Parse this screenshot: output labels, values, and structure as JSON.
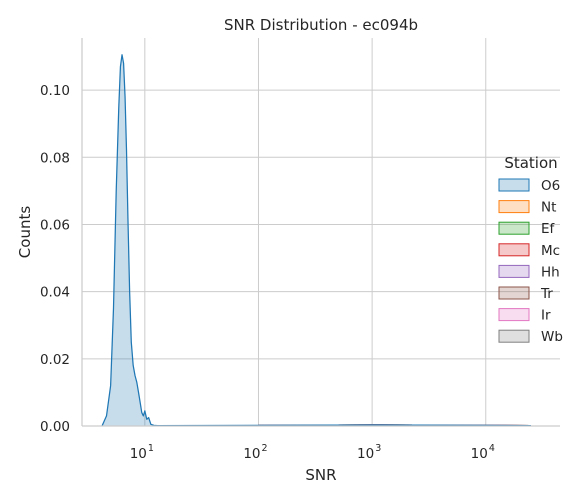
{
  "chart_data": {
    "type": "area",
    "title": "SNR Distribution - ec094b",
    "xlabel": "SNR",
    "ylabel": "Counts",
    "xscale": "log",
    "xlim": [
      2.8,
      45000
    ],
    "ylim": [
      0,
      0.1155
    ],
    "x_ticks": [
      {
        "base": "10",
        "exp": "1",
        "value": 10
      },
      {
        "base": "10",
        "exp": "2",
        "value": 100
      },
      {
        "base": "10",
        "exp": "3",
        "value": 1000
      },
      {
        "base": "10",
        "exp": "4",
        "value": 10000
      }
    ],
    "y_ticks": [
      "0.00",
      "0.02",
      "0.04",
      "0.06",
      "0.08",
      "0.10"
    ],
    "y_tick_values": [
      0,
      0.02,
      0.04,
      0.06,
      0.08,
      0.1
    ],
    "grid": true,
    "legend": {
      "title": "Station",
      "placement": "center-right",
      "entries": [
        {
          "name": "O6",
          "color": "#1f77b4"
        },
        {
          "name": "Nt",
          "color": "#ff7f0e"
        },
        {
          "name": "Ef",
          "color": "#2ca02c"
        },
        {
          "name": "Mc",
          "color": "#d62728"
        },
        {
          "name": "Hh",
          "color": "#9467bd"
        },
        {
          "name": "Tr",
          "color": "#8c564b"
        },
        {
          "name": "Ir",
          "color": "#e377c2"
        },
        {
          "name": "Wb",
          "color": "#7f7f7f"
        }
      ]
    },
    "series": [
      {
        "name": "O6",
        "color": "#1f77b4",
        "x": [
          4.2,
          4.6,
          5.0,
          5.3,
          5.6,
          5.9,
          6.1,
          6.3,
          6.5,
          6.7,
          6.9,
          7.1,
          7.35,
          7.6,
          7.9,
          8.2,
          8.5,
          8.8,
          9.1,
          9.4,
          9.7,
          10.0,
          10.4,
          10.8,
          11.3,
          12.0,
          13.0,
          100,
          1000,
          10000,
          25000
        ],
        "values": [
          0.0,
          0.003,
          0.012,
          0.035,
          0.07,
          0.095,
          0.107,
          0.1105,
          0.108,
          0.098,
          0.082,
          0.062,
          0.04,
          0.025,
          0.018,
          0.015,
          0.013,
          0.01,
          0.007,
          0.004,
          0.003,
          0.0045,
          0.002,
          0.0025,
          0.0005,
          0.0002,
          0.0001,
          0.0002,
          0.0003,
          0.0002,
          0.0001
        ]
      },
      {
        "name": "Nt",
        "color": "#ff7f0e",
        "x": [
          100,
          1000,
          10000,
          25000
        ],
        "values": [
          0.0002,
          0.0003,
          0.0002,
          0.0001
        ]
      },
      {
        "name": "Ef",
        "color": "#2ca02c",
        "x": [
          100,
          1000,
          10000,
          25000
        ],
        "values": [
          0.0002,
          0.0003,
          0.0002,
          0.0001
        ]
      },
      {
        "name": "Mc",
        "color": "#d62728",
        "x": [
          100,
          1000,
          10000,
          25000
        ],
        "values": [
          0.0002,
          0.0003,
          0.0002,
          0.0001
        ]
      },
      {
        "name": "Hh",
        "color": "#9467bd",
        "x": [
          100,
          1000,
          10000,
          25000
        ],
        "values": [
          0.0002,
          0.0003,
          0.0002,
          0.0001
        ]
      },
      {
        "name": "Tr",
        "color": "#8c564b",
        "x": [
          100,
          1000,
          10000,
          25000
        ],
        "values": [
          0.0002,
          0.0003,
          0.0002,
          0.0001
        ]
      },
      {
        "name": "Ir",
        "color": "#e377c2",
        "x": [
          100,
          1000,
          10000,
          25000
        ],
        "values": [
          0.0002,
          0.0003,
          0.0002,
          0.0001
        ]
      },
      {
        "name": "Wb",
        "color": "#7f7f7f",
        "x": [
          100,
          1000,
          10000,
          25000
        ],
        "values": [
          0.0002,
          0.0003,
          0.0002,
          0.0001
        ]
      }
    ]
  }
}
